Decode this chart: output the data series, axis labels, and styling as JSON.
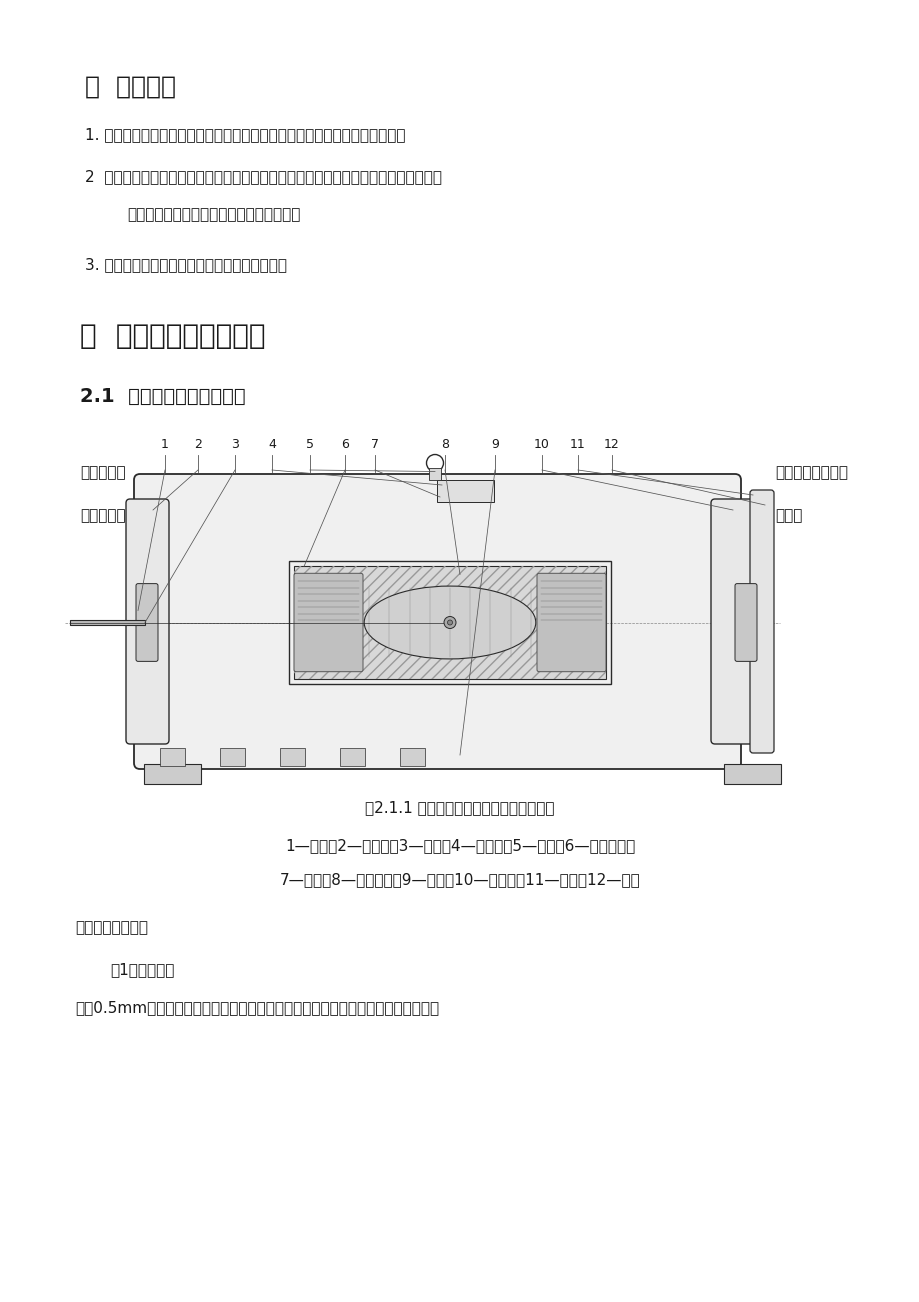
{
  "bg_color": "#ffffff",
  "text_color": "#1a1a1a",
  "page_width": 9.2,
  "page_height": 13.02,
  "section1_title": "一  实训目的",
  "section2_title": "二  异步电机的基本理论",
  "section21_title": "2.1  三相异步电动机的构造",
  "para1": "1. 本次实训为电机绕组实训，通过实训可以进一步的理解电动机的构造构成。",
  "para2_line1": "2  通过本次的电机实训，可以更进一步的理解电机的运营原理，会对三相异步电动机的",
  "para2_line2": "    定子绕组进行对的的三角形或者星型连接。",
  "para3": "3. 加深理解三相电动机的工作原理，构成构造。",
  "diagram_text_left1": "三相异步机",
  "diagram_text_left2": "和转子这两",
  "diagram_text_right1": "的，它们都由定子",
  "diagram_text_right2": "造图。",
  "numbers_top": [
    "1",
    "2",
    "3",
    "4",
    "5",
    "6",
    "7",
    "8",
    "9",
    "10",
    "11",
    "12"
  ],
  "diagram_caption": "图2.1.1 封闭式三相笼型异步电动机构造图",
  "legend_line1": "1—轴承；2—前端盖；3—转轴；4—接线盒；5—吊环；6—定子铁心；",
  "legend_line2": "7—转子；8—定子绕组；9—机座；10—后端盖；11—风罩；12—电扇",
  "subheading1": "（一）定子和转子",
  "subheading2": "（1）转子铁心",
  "last_para": "是用0.5mm厚的硅钢片叠压而成，套在转轴上，作用和定子铁心相似，一方面作为电"
}
